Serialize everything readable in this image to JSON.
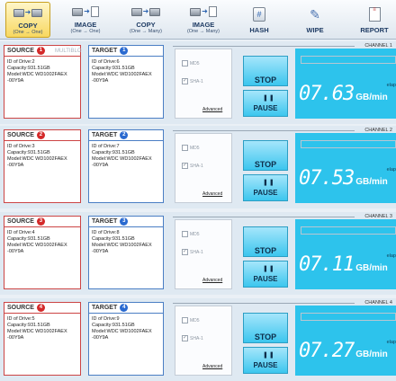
{
  "toolbar": {
    "items": [
      {
        "label": "COPY",
        "sub": "(One → One)"
      },
      {
        "label": "IMAGE",
        "sub": "(One → One)"
      },
      {
        "label": "COPY",
        "sub": "(One → Many)"
      },
      {
        "label": "IMAGE",
        "sub": "(One → Many)"
      },
      {
        "label": "HASH",
        "sub": ""
      },
      {
        "label": "WIPE",
        "sub": ""
      },
      {
        "label": "REPORT",
        "sub": ""
      }
    ]
  },
  "channels": [
    {
      "title": "CHANNEL 1",
      "source_tab": "SOURCE",
      "source_num": "1",
      "multi_tab": "MULTIBLO",
      "target_tab": "TARGET",
      "target_num": "1",
      "source": {
        "line1": "ID of Drive:2",
        "line2": "Capacity:931.51GB",
        "line3": "Model:WDC WD1002FAEX",
        "line4": "-00Y9A"
      },
      "target": {
        "line1": "ID of Drive:6",
        "line2": "Capacity:931.51GB",
        "line3": "Model:WDC WD1002FAEX",
        "line4": "-00Y9A"
      },
      "opt_md5": "MD5",
      "opt_sha": "SHA-1",
      "advanced": "Advanced",
      "stop": "STOP",
      "pause": "PAUSE",
      "speed": "07.63",
      "unit": "GB/min",
      "elapsed": "elap",
      "progress": 1.0
    },
    {
      "title": "CHANNEL 2",
      "source_tab": "SOURCE",
      "source_num": "2",
      "multi_tab": "",
      "target_tab": "TARGET",
      "target_num": "2",
      "source": {
        "line1": "ID of Drive:3",
        "line2": "Capacity:931.51GB",
        "line3": "Model:WDC WD1002FAEX",
        "line4": "-00Y9A"
      },
      "target": {
        "line1": "ID of Drive:7",
        "line2": "Capacity:931.51GB",
        "line3": "Model:WDC WD1002FAEX",
        "line4": "-00Y9A"
      },
      "opt_md5": "MD5",
      "opt_sha": "SHA-1",
      "advanced": "Advanced",
      "stop": "STOP",
      "pause": "PAUSE",
      "speed": "07.53",
      "unit": "GB/min",
      "elapsed": "elap",
      "progress": 1.0
    },
    {
      "title": "CHANNEL 3",
      "source_tab": "SOURCE",
      "source_num": "3",
      "multi_tab": "",
      "target_tab": "TARGET",
      "target_num": "3",
      "source": {
        "line1": "ID of Drive:4",
        "line2": "Capacity:931.51GB",
        "line3": "Model:WDC WD1002FAEX",
        "line4": "-00Y9A"
      },
      "target": {
        "line1": "ID of Drive:8",
        "line2": "Capacity:931.51GB",
        "line3": "Model:WDC WD1002FAEX",
        "line4": "-00Y9A"
      },
      "opt_md5": "MD5",
      "opt_sha": "SHA-1",
      "advanced": "Advanced",
      "stop": "STOP",
      "pause": "PAUSE",
      "speed": "07.11",
      "unit": "GB/min",
      "elapsed": "elap",
      "progress": 1.0
    },
    {
      "title": "CHANNEL 4",
      "source_tab": "SOURCE",
      "source_num": "4",
      "multi_tab": "",
      "target_tab": "TARGET",
      "target_num": "4",
      "source": {
        "line1": "ID of Drive:5",
        "line2": "Capacity:931.51GB",
        "line3": "Model:WDC WD1002FAEX",
        "line4": "-00Y9A"
      },
      "target": {
        "line1": "ID of Drive:9",
        "line2": "Capacity:931.51GB",
        "line3": "Model:WDC WD1002FAEX",
        "line4": "-00Y9A"
      },
      "opt_md5": "MD5",
      "opt_sha": "SHA-1",
      "advanced": "Advanced",
      "stop": "STOP",
      "pause": "PAUSE",
      "speed": "07.27",
      "unit": "GB/min",
      "elapsed": "elap",
      "progress": 1.0
    }
  ],
  "colors": {
    "accent": "#2dc3ec",
    "source_border": "#cc4444",
    "target_border": "#4a7ec4",
    "active_tool": "#f8d860"
  }
}
